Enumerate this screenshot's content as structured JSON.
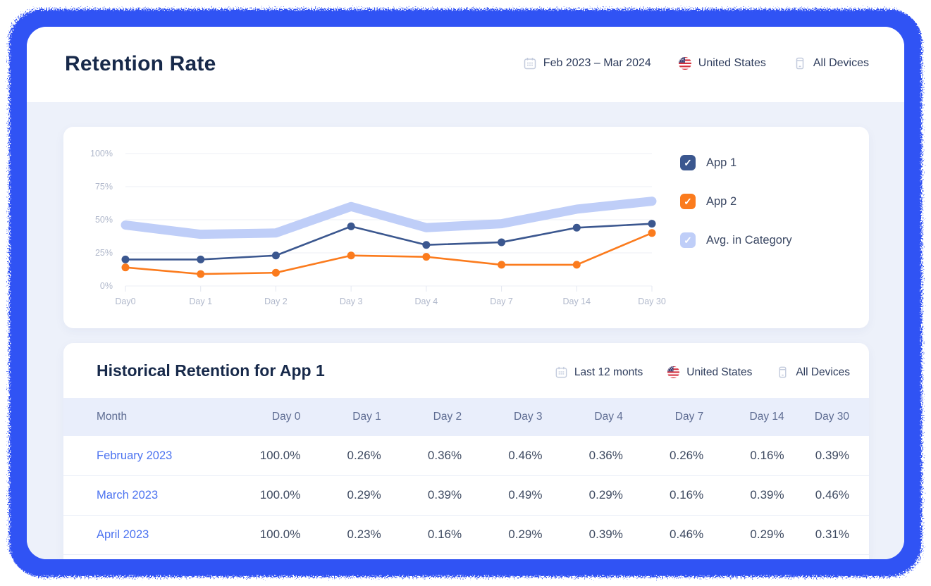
{
  "header": {
    "title": "Retention Rate",
    "filters": {
      "date_range": "Feb 2023 – Mar 2024",
      "country": "United States",
      "devices": "All Devices"
    }
  },
  "chart_data": {
    "type": "line",
    "categories": [
      "Day0",
      "Day 1",
      "Day 2",
      "Day 3",
      "Day 4",
      "Day 7",
      "Day 14",
      "Day 30"
    ],
    "series": [
      {
        "name": "App 1",
        "color": "#3B578F",
        "style": "line",
        "checked": true,
        "values": [
          20,
          20,
          23,
          45,
          31,
          33,
          44,
          47
        ]
      },
      {
        "name": "App 2",
        "color": "#FB7B1D",
        "style": "line",
        "checked": true,
        "values": [
          14,
          9,
          10,
          23,
          22,
          16,
          16,
          40
        ]
      },
      {
        "name": "Avg. in Category",
        "color": "#BFCEF8",
        "style": "band",
        "checked": true,
        "values": [
          46,
          39,
          40,
          60,
          44,
          47,
          58,
          64
        ]
      }
    ],
    "y_ticks": [
      {
        "v": 0,
        "label": "0%"
      },
      {
        "v": 25,
        "label": "25%"
      },
      {
        "v": 50,
        "label": "50%"
      },
      {
        "v": 75,
        "label": "75%"
      },
      {
        "v": 100,
        "label": "100%"
      }
    ],
    "ylim": [
      0,
      100
    ],
    "grid": true,
    "legend_position": "right",
    "title": "",
    "xlabel": "",
    "ylabel": ""
  },
  "table": {
    "title": "Historical Retention for App 1",
    "filters": {
      "period": "Last 12 monts",
      "country": "United States",
      "devices": "All Devices"
    },
    "columns": [
      "Month",
      "Day 0",
      "Day 1",
      "Day 2",
      "Day 3",
      "Day 4",
      "Day 7",
      "Day 14",
      "Day 30"
    ],
    "rows": [
      {
        "month": "February 2023",
        "values": [
          "100.0%",
          "0.26%",
          "0.36%",
          "0.46%",
          "0.36%",
          "0.26%",
          "0.16%",
          "0.39%"
        ]
      },
      {
        "month": "March 2023",
        "values": [
          "100.0%",
          "0.29%",
          "0.39%",
          "0.49%",
          "0.29%",
          "0.16%",
          "0.39%",
          "0.46%"
        ]
      },
      {
        "month": "April 2023",
        "values": [
          "100.0%",
          "0.23%",
          "0.16%",
          "0.29%",
          "0.39%",
          "0.46%",
          "0.29%",
          "0.31%"
        ]
      }
    ]
  },
  "colors": {
    "frame_blue": "#3053F4",
    "body_bg": "#EDF1FA",
    "title_navy": "#17294A",
    "grid_line": "#ECEFF6",
    "tick_text": "#B0B8CB",
    "month_link": "#4C73F0",
    "header_row_bg": "#E9EEFB"
  }
}
